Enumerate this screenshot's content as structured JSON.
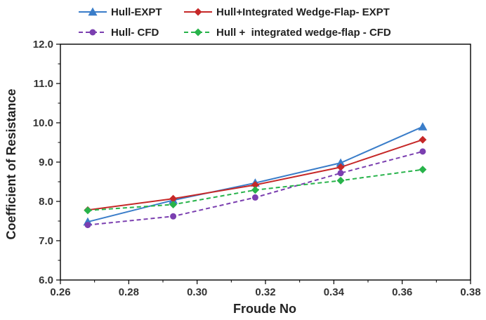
{
  "chart_data": {
    "type": "line",
    "title": "",
    "xlabel": "Froude No",
    "ylabel": "Coefficient of Resistance",
    "xlim": [
      0.26,
      0.38
    ],
    "ylim": [
      6.0,
      12.0
    ],
    "xticks": [
      0.26,
      0.28,
      0.3,
      0.32,
      0.34,
      0.36,
      0.38
    ],
    "yticks": [
      6.0,
      7.0,
      8.0,
      9.0,
      10.0,
      11.0,
      12.0
    ],
    "xtick_labels": [
      "0.26",
      "0.28",
      "0.30",
      "0.32",
      "0.34",
      "0.36",
      "0.38"
    ],
    "ytick_labels": [
      "6.0",
      "7.0",
      "8.0",
      "9.0",
      "10.0",
      "11.0",
      "12.0"
    ],
    "grid": false,
    "legend_position": "top",
    "series": [
      {
        "name": "Hull-EXPT",
        "color": "#3a7dc9",
        "dash": "solid",
        "marker": "triangle",
        "x": [
          0.268,
          0.293,
          0.317,
          0.342,
          0.366
        ],
        "y": [
          7.48,
          8.03,
          8.47,
          8.98,
          9.9
        ]
      },
      {
        "name": "Hull+Integrated Wedge-Flap- EXPT",
        "color": "#c62828",
        "dash": "solid",
        "marker": "diamond",
        "x": [
          0.268,
          0.293,
          0.317,
          0.342,
          0.366
        ],
        "y": [
          7.78,
          8.07,
          8.42,
          8.87,
          9.57
        ]
      },
      {
        "name": "Hull- CFD",
        "color": "#7b3fb0",
        "dash": "dashed",
        "marker": "circle",
        "x": [
          0.268,
          0.293,
          0.317,
          0.342,
          0.366
        ],
        "y": [
          7.4,
          7.62,
          8.1,
          8.72,
          9.27
        ]
      },
      {
        "name": "Hull +  integrated wedge-flap - CFD",
        "color": "#27b34a",
        "dash": "dashed",
        "marker": "diamond",
        "x": [
          0.268,
          0.293,
          0.317,
          0.342,
          0.366
        ],
        "y": [
          7.77,
          7.92,
          8.29,
          8.53,
          8.81
        ]
      }
    ]
  }
}
